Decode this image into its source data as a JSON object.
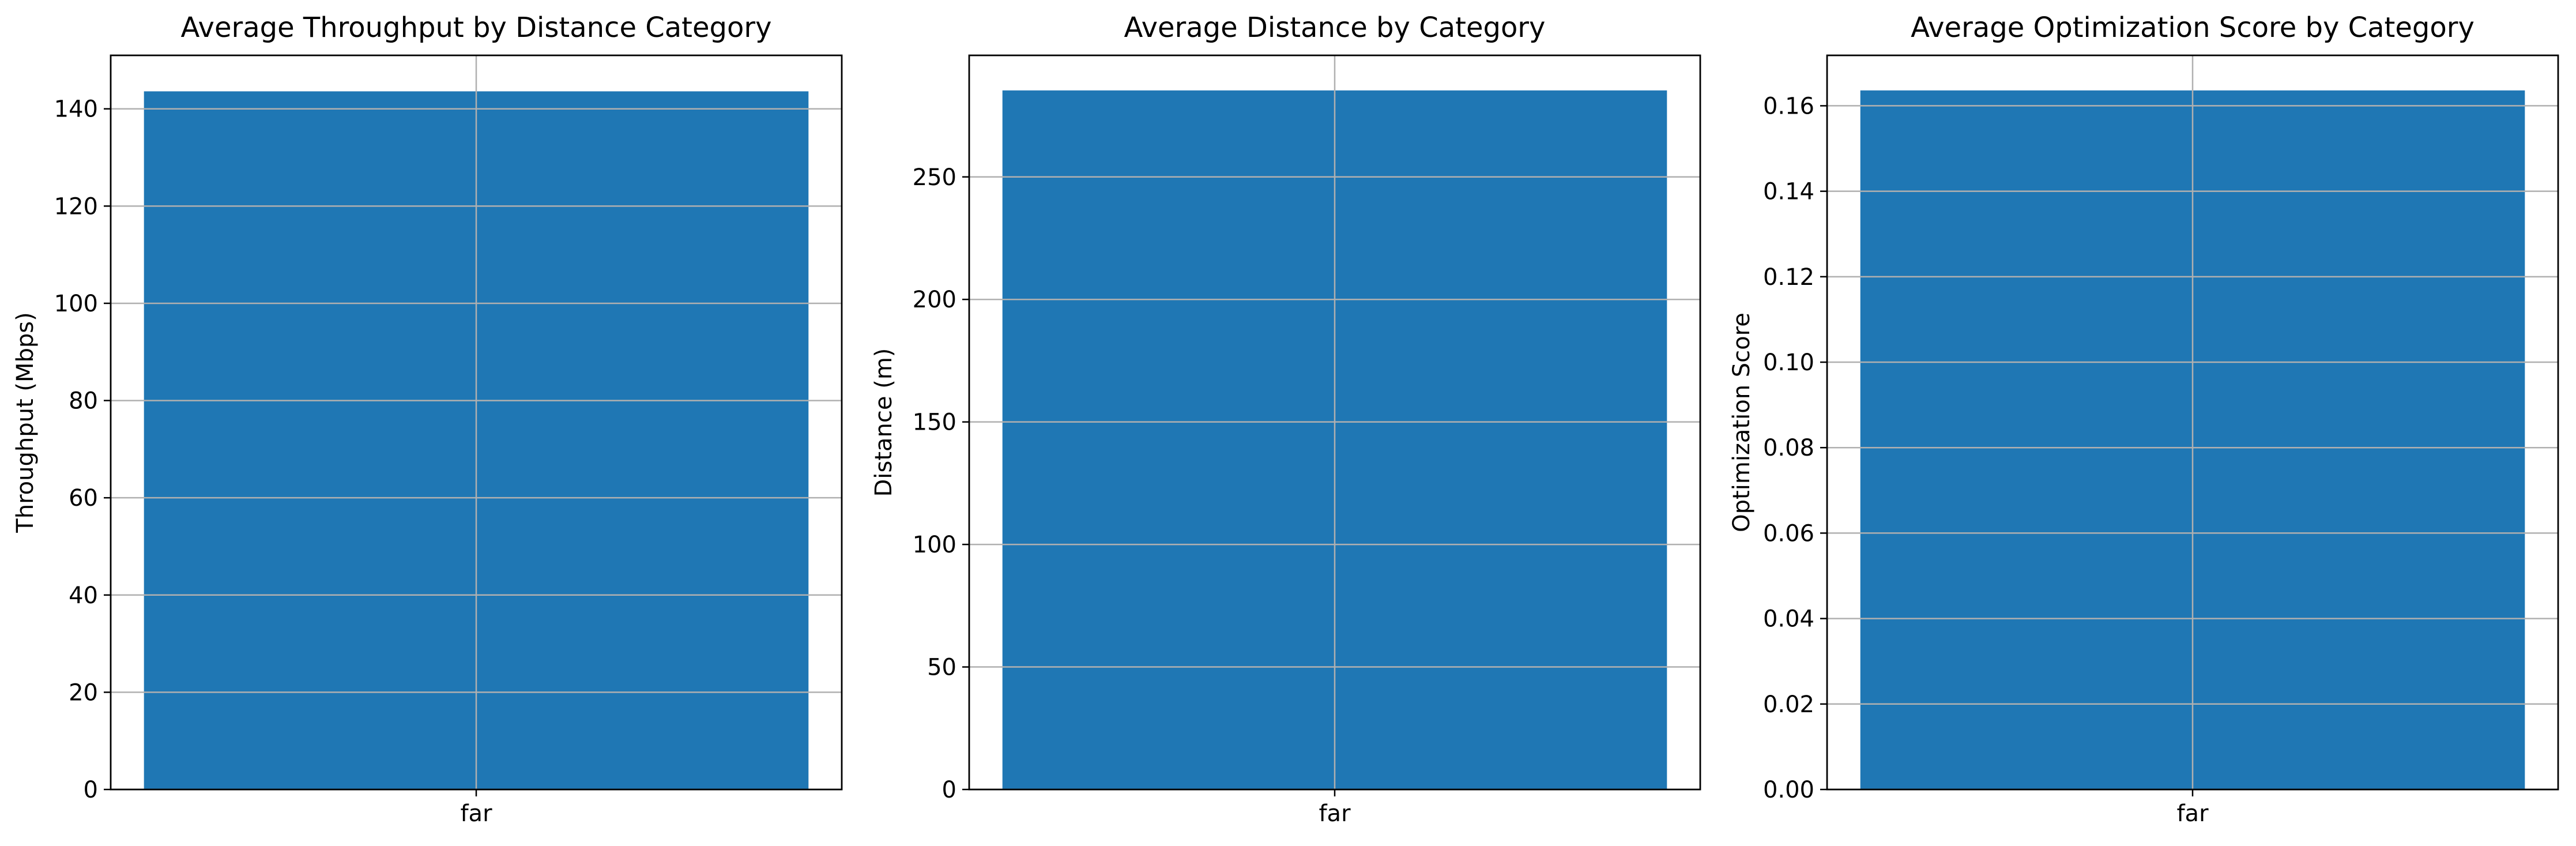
{
  "chart_data": [
    {
      "type": "bar",
      "title": "Average Throughput by Distance Category",
      "xlabel": "",
      "ylabel": "Throughput (Mbps)",
      "categories": [
        "far"
      ],
      "values": [
        143.6
      ],
      "ylim": [
        0,
        151
      ],
      "yticks": [
        0,
        20,
        40,
        60,
        80,
        100,
        120,
        140
      ],
      "ytick_decimals": 0,
      "grid": true,
      "bar_color": "#1f77b4"
    },
    {
      "type": "bar",
      "title": "Average Distance by Category",
      "xlabel": "",
      "ylabel": "Distance (m)",
      "categories": [
        "far"
      ],
      "values": [
        285.3
      ],
      "ylim": [
        0,
        299.6
      ],
      "yticks": [
        0,
        50,
        100,
        150,
        200,
        250
      ],
      "ytick_decimals": 0,
      "grid": true,
      "bar_color": "#1f77b4"
    },
    {
      "type": "bar",
      "title": "Average Optimization Score by Category",
      "xlabel": "",
      "ylabel": "Optimization Score",
      "categories": [
        "far"
      ],
      "values": [
        0.1636
      ],
      "ylim": [
        0,
        0.1718
      ],
      "yticks": [
        0.0,
        0.02,
        0.04,
        0.06,
        0.08,
        0.1,
        0.12,
        0.14,
        0.16
      ],
      "ytick_decimals": 2,
      "grid": true,
      "bar_color": "#1f77b4"
    }
  ]
}
